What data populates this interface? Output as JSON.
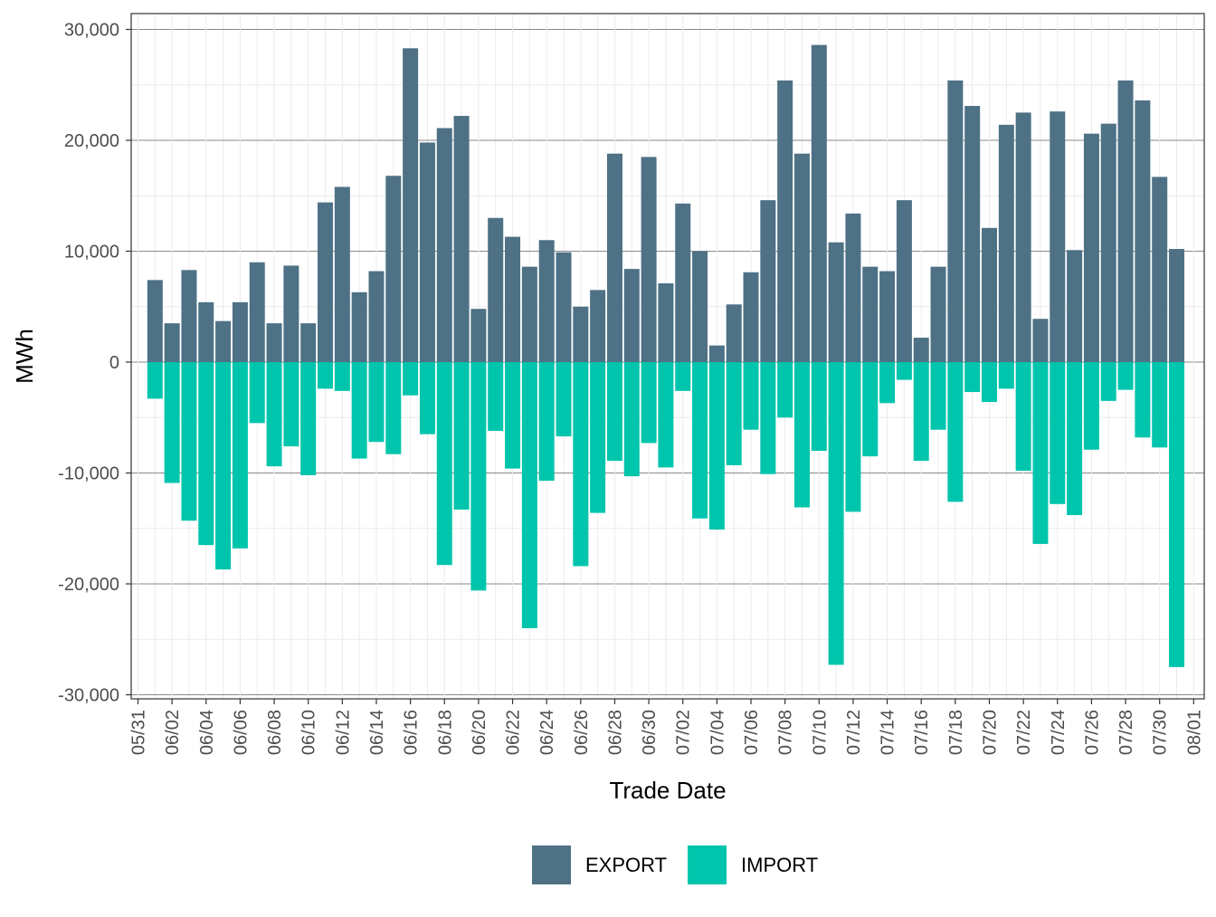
{
  "chart_data": {
    "type": "bar",
    "stacked": true,
    "xlabel": "Trade Date",
    "ylabel": "MWh",
    "ylim": [
      -30000,
      30000
    ],
    "y_ticks": [
      30000,
      20000,
      10000,
      0,
      -10000,
      -20000,
      -30000
    ],
    "y_tick_labels": [
      "30,000",
      "20,000",
      "10,000",
      "0",
      "-10,000",
      "-20,000",
      "-30,000"
    ],
    "x_tick_labels": [
      "05/31",
      "06/02",
      "06/04",
      "06/06",
      "06/08",
      "06/10",
      "06/12",
      "06/14",
      "06/16",
      "06/18",
      "06/20",
      "06/22",
      "06/24",
      "06/26",
      "06/28",
      "06/30",
      "07/02",
      "07/04",
      "07/06",
      "07/08",
      "07/10",
      "07/12",
      "07/14",
      "07/16",
      "07/18",
      "07/20",
      "07/22",
      "07/24",
      "07/26",
      "07/28",
      "07/30",
      "08/01"
    ],
    "categories": [
      "06/01",
      "06/02",
      "06/03",
      "06/04",
      "06/05",
      "06/06",
      "06/07",
      "06/08",
      "06/09",
      "06/10",
      "06/11",
      "06/12",
      "06/13",
      "06/14",
      "06/15",
      "06/16",
      "06/17",
      "06/18",
      "06/19",
      "06/20",
      "06/21",
      "06/22",
      "06/23",
      "06/24",
      "06/25",
      "06/26",
      "06/27",
      "06/28",
      "06/29",
      "06/30",
      "07/01",
      "07/02",
      "07/03",
      "07/04",
      "07/05",
      "07/06",
      "07/07",
      "07/08",
      "07/09",
      "07/10",
      "07/11",
      "07/12",
      "07/13",
      "07/14",
      "07/15",
      "07/16",
      "07/17",
      "07/18",
      "07/19",
      "07/20",
      "07/21",
      "07/22",
      "07/23",
      "07/24",
      "07/25",
      "07/26",
      "07/27",
      "07/28",
      "07/29",
      "07/30",
      "07/31"
    ],
    "series": [
      {
        "name": "EXPORT",
        "color": "#4e7186",
        "values": [
          7400,
          3500,
          8300,
          5400,
          3700,
          5400,
          9000,
          3500,
          8700,
          3500,
          14400,
          15800,
          6300,
          8200,
          16800,
          28300,
          19800,
          21100,
          22200,
          4800,
          13000,
          11300,
          8600,
          11000,
          9900,
          5000,
          6500,
          18800,
          8400,
          18500,
          7100,
          14300,
          10000,
          1500,
          5200,
          8100,
          14600,
          25400,
          18800,
          28600,
          10800,
          13400,
          8600,
          8200,
          14600,
          2200,
          8600,
          25400,
          23100,
          12100,
          21400,
          22500,
          3900,
          22600,
          10100,
          20600,
          21500,
          25400,
          23600,
          16700,
          10200
        ]
      },
      {
        "name": "IMPORT",
        "color": "#00c5ad",
        "values": [
          -3300,
          -10900,
          -14300,
          -16500,
          -18700,
          -16800,
          -5500,
          -9400,
          -7600,
          -10200,
          -2400,
          -2600,
          -8700,
          -7200,
          -8300,
          -3000,
          -6500,
          -18300,
          -13300,
          -20600,
          -6200,
          -9600,
          -24000,
          -10700,
          -6700,
          -18400,
          -13600,
          -8900,
          -10300,
          -7300,
          -9500,
          -2600,
          -14100,
          -15100,
          -9300,
          -6100,
          -10100,
          -5000,
          -13100,
          -8000,
          -27300,
          -13500,
          -8500,
          -3700,
          -1600,
          -8900,
          -6100,
          -12600,
          -2700,
          -3600,
          -2400,
          -9800,
          -16400,
          -12800,
          -13800,
          -7900,
          -3500,
          -2500,
          -6800,
          -7700,
          -27500
        ]
      }
    ],
    "grid": true,
    "legend_position": "bottom"
  }
}
